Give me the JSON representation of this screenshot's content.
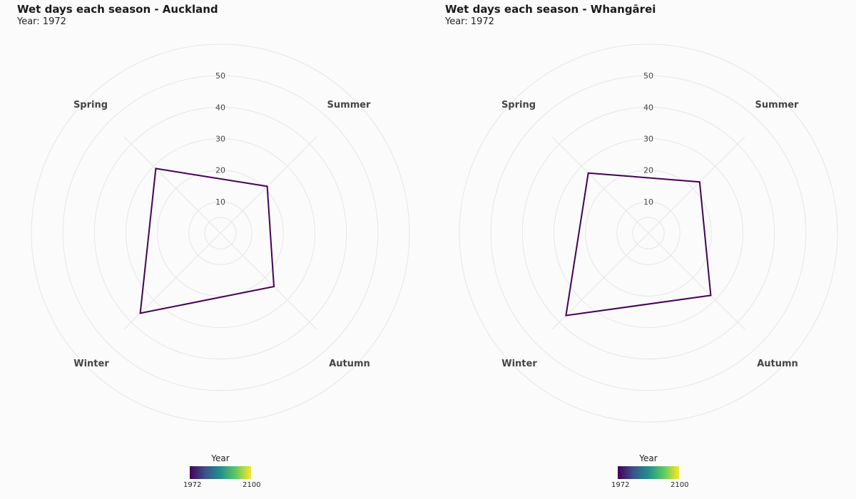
{
  "colors": {
    "series": "#440154",
    "gradient": [
      "#440154",
      "#3b528b",
      "#21908c",
      "#5dc963",
      "#fde725"
    ],
    "grid": "#e6e6e6",
    "background": "#fbfbfb"
  },
  "chart_data": [
    {
      "type": "radar",
      "title": "Wet days each season - Auckland",
      "subtitle": "Year: 1972",
      "axes": [
        "Spring",
        "Summer",
        "Autumn",
        "Winter"
      ],
      "ring_ticks": [
        10,
        20,
        30,
        40,
        50
      ],
      "range": [
        0,
        60
      ],
      "series": [
        {
          "name": "1972",
          "values": [
            29,
            21,
            24,
            36
          ]
        }
      ],
      "legend": {
        "title": "Year",
        "min_label": "1972",
        "max_label": "2100",
        "placement": "bottom"
      }
    },
    {
      "type": "radar",
      "title": "Wet days each season - Whangārei",
      "subtitle": "Year: 1972",
      "axes": [
        "Spring",
        "Summer",
        "Autumn",
        "Winter"
      ],
      "ring_ticks": [
        10,
        20,
        30,
        40,
        50
      ],
      "range": [
        0,
        60
      ],
      "series": [
        {
          "name": "1972",
          "values": [
            27,
            23,
            28,
            37
          ]
        }
      ],
      "legend": {
        "title": "Year",
        "min_label": "1972",
        "max_label": "2100",
        "placement": "bottom"
      }
    }
  ]
}
